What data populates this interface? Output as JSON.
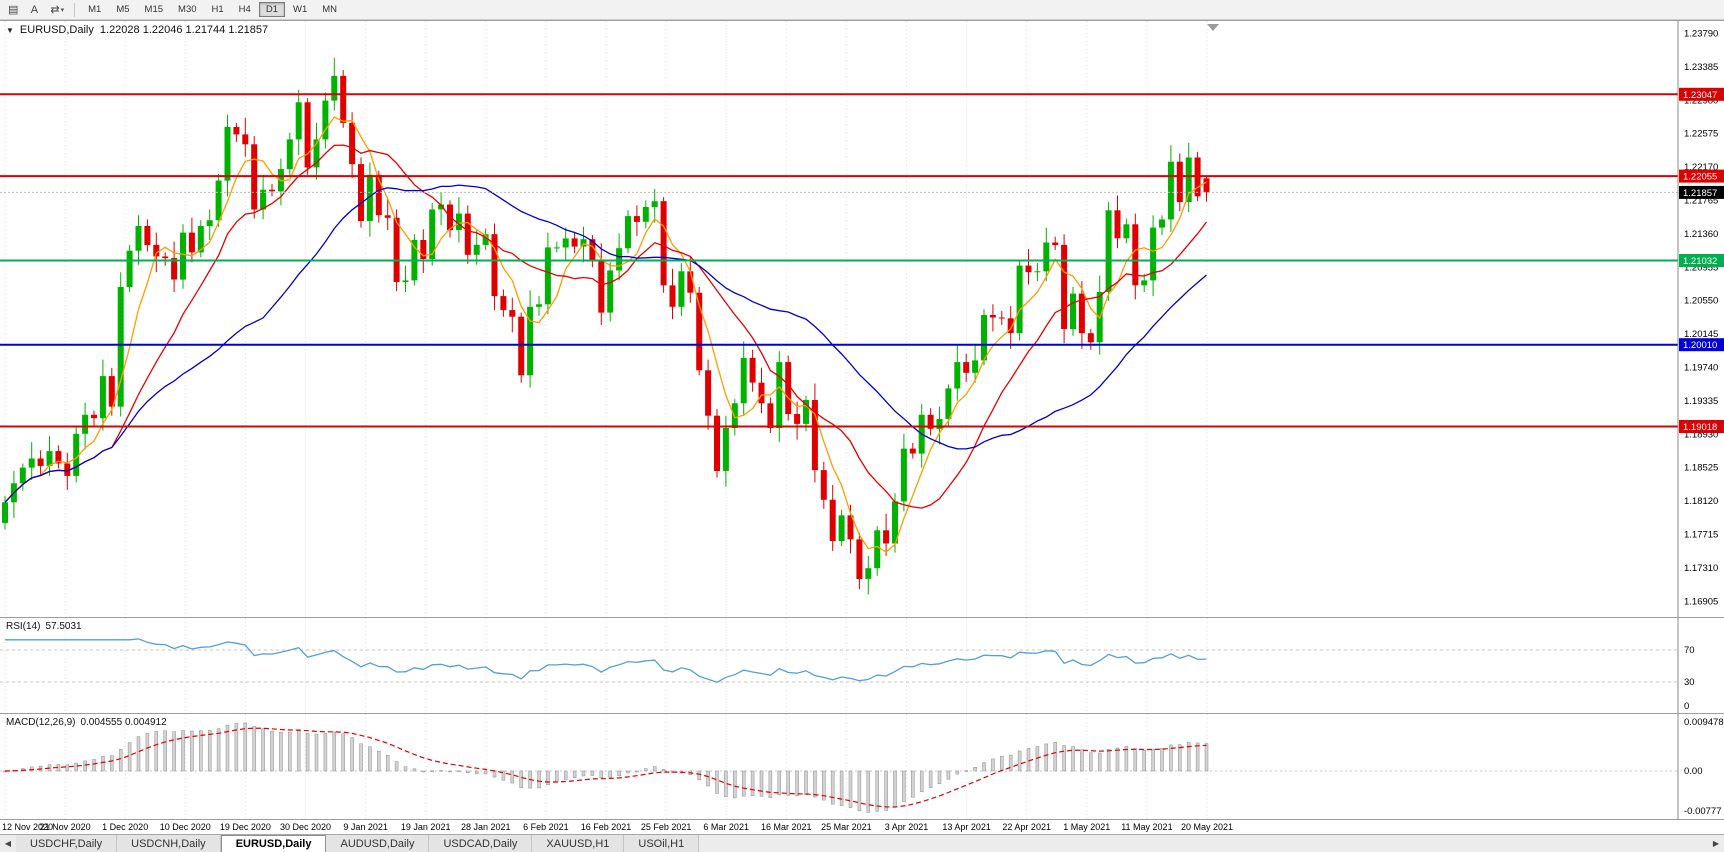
{
  "toolbar": {
    "tools": [
      {
        "name": "chart-menu",
        "glyph": "▤"
      },
      {
        "name": "text-annotation",
        "glyph": "A"
      },
      {
        "name": "cursor-mode",
        "glyph": "⇄",
        "caret": "▾"
      }
    ],
    "timeframes": [
      "M1",
      "M5",
      "M15",
      "M30",
      "H1",
      "H4",
      "D1",
      "W1",
      "MN"
    ],
    "active_timeframe": "D1"
  },
  "chart": {
    "collapse_arrow": "▼",
    "symbol_title": "EURUSD,Daily",
    "ohlc_values": "1.22028 1.22046 1.21744 1.21857"
  },
  "rsi": {
    "label": "RSI(14)",
    "value": "57.5031",
    "axis_labels": [
      "70",
      "30",
      "0"
    ],
    "line_color": "#559fd6"
  },
  "macd": {
    "label": "MACD(12,26,9)",
    "values": "0.004555 0.004912",
    "axis_labels": [
      "0.009478",
      "0.00",
      "-0.00777"
    ],
    "histogram_color": "#d2d2d2",
    "histogram_border": "#8e8e8e",
    "signal_color": "#e00000"
  },
  "time_axis": [
    "12 Nov 2020",
    "21 Nov 2020",
    "1 Dec 2020",
    "10 Dec 2020",
    "19 Dec 2020",
    "30 Dec 2020",
    "9 Jan 2021",
    "19 Jan 2021",
    "28 Jan 2021",
    "6 Feb 2021",
    "16 Feb 2021",
    "25 Feb 2021",
    "6 Mar 2021",
    "16 Mar 2021",
    "25 Mar 2021",
    "3 Apr 2021",
    "13 Apr 2021",
    "22 Apr 2021",
    "1 May 2021",
    "11 May 2021",
    "20 May 2021"
  ],
  "tabs": {
    "items": [
      "USDCHF,Daily",
      "USDCNH,Daily",
      "EURUSD,Daily",
      "AUDUSD,Daily",
      "USDCAD,Daily",
      "XAUUSD,H1",
      "USOil,H1"
    ],
    "active_index": 2,
    "left_arrow": "◀",
    "right_arrow": "▶"
  },
  "chart_data": {
    "type": "candlestick",
    "title": "EURUSD,Daily",
    "up_color": "#00b300",
    "down_color": "#e00000",
    "grid_color": "#dedede",
    "closes": [
      1.181,
      1.1833,
      1.1852,
      1.1863,
      1.1854,
      1.1872,
      1.1857,
      1.1842,
      1.1893,
      1.1916,
      1.1912,
      1.1963,
      1.1926,
      1.2071,
      1.2115,
      1.2145,
      1.2122,
      1.2108,
      1.2106,
      1.208,
      1.2137,
      1.2113,
      1.2145,
      1.2152,
      1.22,
      1.2265,
      1.2256,
      1.2244,
      1.2165,
      1.2189,
      1.2187,
      1.2214,
      1.225,
      1.2295,
      1.2216,
      1.225,
      1.2297,
      1.2327,
      1.227,
      1.222,
      1.2151,
      1.2207,
      1.2158,
      1.2155,
      1.2077,
      1.2079,
      1.2128,
      1.2105,
      1.2165,
      1.2171,
      1.214,
      1.216,
      1.211,
      1.2122,
      1.2135,
      1.206,
      1.2043,
      1.2035,
      1.1964,
      1.2047,
      1.205,
      1.2119,
      1.2119,
      1.213,
      1.212,
      1.2129,
      1.2104,
      1.204,
      1.2091,
      1.2118,
      1.2157,
      1.215,
      1.2168,
      1.2175,
      1.2073,
      1.2047,
      1.209,
      1.2064,
      1.197,
      1.1915,
      1.1848,
      1.19,
      1.193,
      1.1985,
      1.1955,
      1.193,
      1.19,
      1.198,
      1.1917,
      1.1905,
      1.1934,
      1.1849,
      1.1813,
      1.1763,
      1.1794,
      1.1765,
      1.1717,
      1.173,
      1.1776,
      1.176,
      1.1811,
      1.1875,
      1.1869,
      1.1916,
      1.1899,
      1.1911,
      1.1948,
      1.198,
      1.1967,
      1.1982,
      1.2037,
      1.2034,
      1.2033,
      1.2015,
      1.2097,
      1.2089,
      1.209,
      1.2125,
      1.2122,
      1.202,
      1.2063,
      1.2015,
      1.2004,
      1.2065,
      1.2164,
      1.213,
      1.2147,
      1.2073,
      1.2079,
      1.2143,
      1.2153,
      1.2223,
      1.2174,
      1.2228,
      1.2181,
      1.21857
    ],
    "wick_high": [
      8,
      15,
      5,
      20,
      10,
      18,
      7,
      13
    ],
    "wick_low": [
      12,
      6,
      17,
      8,
      19,
      9,
      15,
      11
    ],
    "wick_overrides": {
      "37": {
        "h": 1.2349
      },
      "96": {
        "l": 1.17045
      },
      "133": {
        "h": 1.2246
      },
      "135": {
        "o": 1.22028,
        "h": 1.22046,
        "l": 1.21744,
        "c": 1.21857
      }
    },
    "current": {
      "price": 1.21857,
      "label": "1.21857",
      "color": "#000000"
    },
    "levels": [
      {
        "price": 1.23047,
        "label": "1.23047",
        "color": "#dd0000"
      },
      {
        "price": 1.22055,
        "label": "1.22055",
        "color": "#dd0000"
      },
      {
        "price": 1.21032,
        "label": "1.21032",
        "color": "#00b050"
      },
      {
        "price": 1.2001,
        "label": "1.20010",
        "color": "#0000d8"
      },
      {
        "price": 1.19018,
        "label": "1.19018",
        "color": "#dd0000"
      }
    ],
    "moving_averages": [
      {
        "period": 5,
        "color": "#ff9c00"
      },
      {
        "period": 13,
        "color": "#e60000"
      },
      {
        "period": 30,
        "color": "#0000cc"
      }
    ],
    "y_axis_labels": [
      "1.23790",
      "1.23385",
      "1.22980",
      "1.22575",
      "1.22170",
      "1.21765",
      "1.21360",
      "1.20955",
      "1.20550",
      "1.20145",
      "1.19740",
      "1.19335",
      "1.18930",
      "1.18525",
      "1.18120",
      "1.17715",
      "1.17310",
      "1.16905"
    ],
    "rsi_period": 14,
    "rsi_levels": [
      70,
      30
    ],
    "macd_fast": 12,
    "macd_slow": 26,
    "macd_signal": 9
  }
}
